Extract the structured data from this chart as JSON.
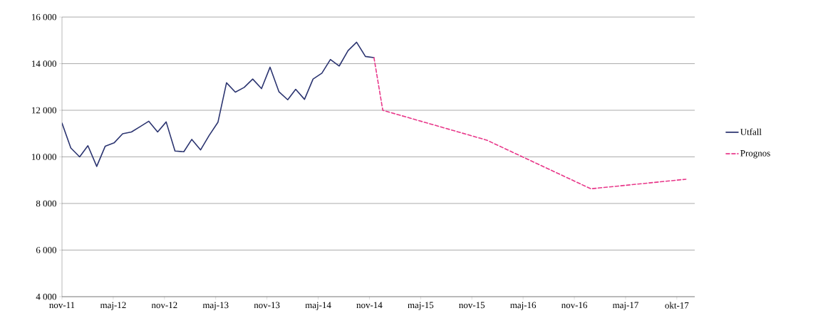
{
  "chart_data": {
    "type": "line",
    "xlim": [
      "2011-11-30",
      "2017-12-31"
    ],
    "xticks": [
      {
        "value": "2011-11-30",
        "label": "nov-11"
      },
      {
        "value": "2012-05-28",
        "label": "maj-12"
      },
      {
        "value": "2012-11-24",
        "label": "nov-12"
      },
      {
        "value": "2013-05-23",
        "label": "maj-13"
      },
      {
        "value": "2013-11-19",
        "label": "nov-13"
      },
      {
        "value": "2014-05-18",
        "label": "maj-14"
      },
      {
        "value": "2014-11-14",
        "label": "nov-14"
      },
      {
        "value": "2015-05-13",
        "label": "maj-15"
      },
      {
        "value": "2015-11-09",
        "label": "nov-15"
      },
      {
        "value": "2016-05-07",
        "label": "maj-16"
      },
      {
        "value": "2016-11-03",
        "label": "nov-16"
      },
      {
        "value": "2017-05-02",
        "label": "maj-17"
      },
      {
        "value": "2017-10-29",
        "label": "okt-17"
      }
    ],
    "ylim": [
      4000,
      16000
    ],
    "yticks": [
      {
        "value": 4000,
        "label": "4 000"
      },
      {
        "value": 6000,
        "label": "6 000"
      },
      {
        "value": 8000,
        "label": "8 000"
      },
      {
        "value": 10000,
        "label": "10 000"
      },
      {
        "value": 12000,
        "label": "12 000"
      },
      {
        "value": 14000,
        "label": "14 000"
      },
      {
        "value": 16000,
        "label": "16 000"
      }
    ],
    "grid": "y",
    "legend": "right",
    "series": [
      {
        "name": "Utfall",
        "color": "#2b3470",
        "line_style": "solid",
        "x": [
          "2011-11-30",
          "2011-12-31",
          "2012-01-31",
          "2012-02-29",
          "2012-03-31",
          "2012-04-30",
          "2012-05-31",
          "2012-06-30",
          "2012-07-31",
          "2012-08-31",
          "2012-09-30",
          "2012-10-31",
          "2012-11-30",
          "2012-12-31",
          "2013-01-31",
          "2013-02-28",
          "2013-03-31",
          "2013-04-30",
          "2013-05-31",
          "2013-06-30",
          "2013-07-31",
          "2013-08-31",
          "2013-09-30",
          "2013-10-31",
          "2013-11-30",
          "2013-12-31",
          "2014-01-31",
          "2014-02-28",
          "2014-03-31",
          "2014-04-30",
          "2014-05-31",
          "2014-06-30",
          "2014-07-31",
          "2014-08-31",
          "2014-09-30",
          "2014-10-31",
          "2014-11-30"
        ],
        "values": [
          11450,
          10380,
          10000,
          10480,
          9590,
          10460,
          10600,
          10990,
          11070,
          11300,
          11530,
          11070,
          11500,
          10250,
          10220,
          10750,
          10300,
          10920,
          11490,
          13180,
          12780,
          12980,
          13340,
          12930,
          13850,
          12800,
          12450,
          12900,
          12470,
          13340,
          13590,
          14180,
          13900,
          14560,
          14920,
          14310,
          14260
        ]
      },
      {
        "name": "Prognos",
        "color": "#e8388a",
        "line_style": "dashed",
        "x": [
          "2014-11-30",
          "2014-12-31",
          "2015-12-31",
          "2016-12-31",
          "2017-11-30"
        ],
        "values": [
          14260,
          12000,
          10720,
          8630,
          9040
        ]
      }
    ]
  }
}
